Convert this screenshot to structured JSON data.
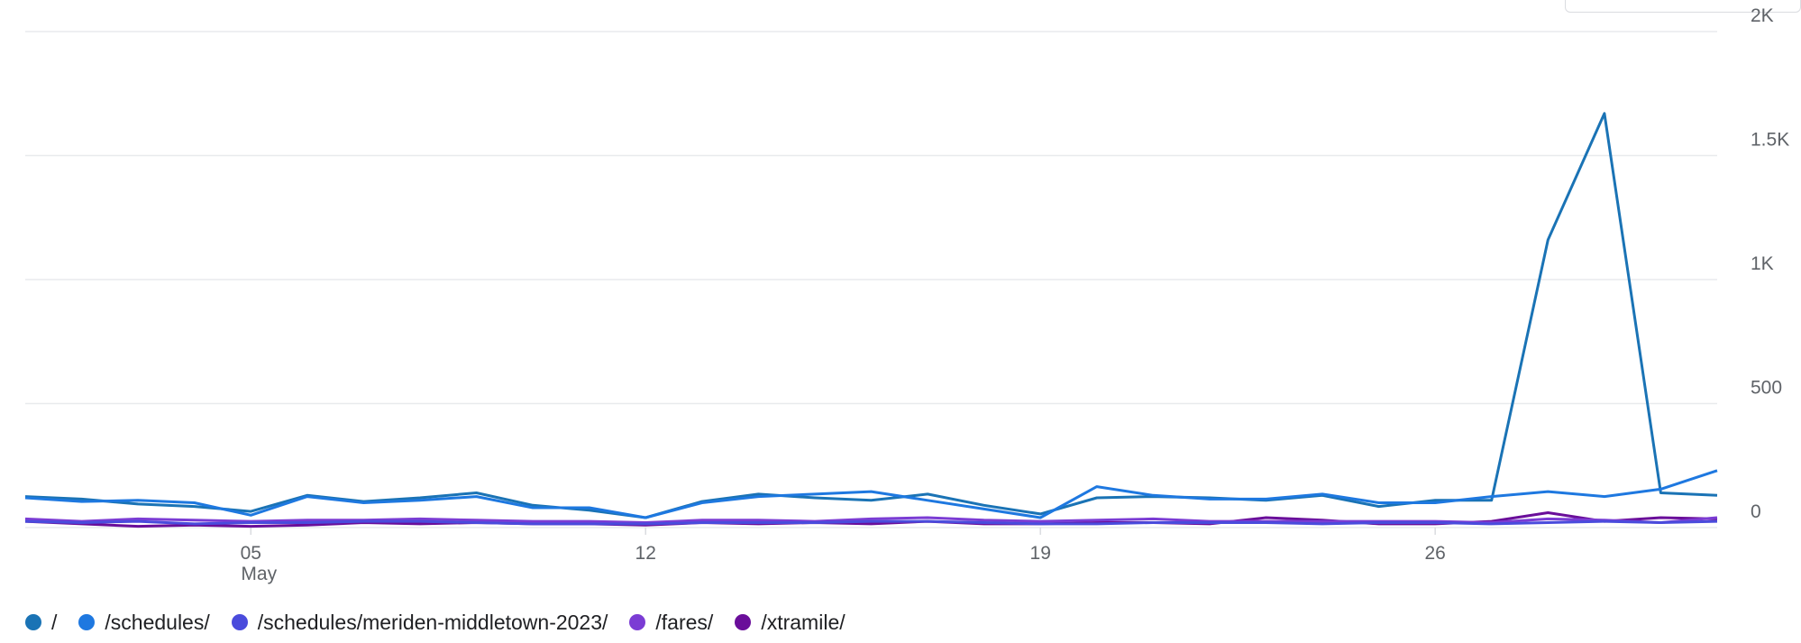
{
  "chart_data": {
    "type": "line",
    "title": "",
    "xlabel": "",
    "ylabel": "",
    "x": [
      "May 1",
      "May 2",
      "May 3",
      "May 4",
      "May 5",
      "May 6",
      "May 7",
      "May 8",
      "May 9",
      "May 10",
      "May 11",
      "May 12",
      "May 13",
      "May 14",
      "May 15",
      "May 16",
      "May 17",
      "May 18",
      "May 19",
      "May 20",
      "May 21",
      "May 22",
      "May 23",
      "May 24",
      "May 25",
      "May 26",
      "May 27",
      "May 28",
      "May 29",
      "May 30",
      "May 31"
    ],
    "x_ticks": [
      {
        "index": 4,
        "label": "05",
        "sublabel": "May"
      },
      {
        "index": 11,
        "label": "12",
        "sublabel": ""
      },
      {
        "index": 18,
        "label": "19",
        "sublabel": ""
      },
      {
        "index": 25,
        "label": "26",
        "sublabel": ""
      }
    ],
    "y_ticks": [
      {
        "value": 0,
        "label": "0"
      },
      {
        "value": 500,
        "label": "500"
      },
      {
        "value": 1000,
        "label": "1K"
      },
      {
        "value": 1500,
        "label": "1.5K"
      },
      {
        "value": 2000,
        "label": "2K"
      }
    ],
    "ylim": [
      0,
      2000
    ],
    "grid": true,
    "y_axis_position": "right",
    "legend_position": "bottom",
    "series": [
      {
        "name": "/",
        "color": "#1a73b5",
        "values": [
          125,
          115,
          95,
          85,
          65,
          130,
          105,
          120,
          140,
          90,
          70,
          40,
          105,
          135,
          120,
          110,
          135,
          90,
          55,
          120,
          125,
          120,
          110,
          130,
          85,
          110,
          110,
          1160,
          1670,
          140,
          130
        ]
      },
      {
        "name": "/schedules/",
        "color": "#1e78e0",
        "values": [
          120,
          105,
          110,
          100,
          50,
          125,
          100,
          110,
          125,
          80,
          80,
          40,
          100,
          125,
          135,
          145,
          110,
          75,
          40,
          165,
          130,
          115,
          115,
          135,
          100,
          100,
          125,
          145,
          125,
          155,
          230
        ]
      },
      {
        "name": "/schedules/meriden-middletown-2023/",
        "color": "#4a4bdc",
        "values": [
          25,
          20,
          25,
          15,
          20,
          20,
          25,
          25,
          20,
          15,
          15,
          15,
          20,
          20,
          20,
          25,
          25,
          20,
          15,
          15,
          20,
          20,
          20,
          15,
          20,
          20,
          15,
          20,
          25,
          20,
          25
        ]
      },
      {
        "name": "/fares/",
        "color": "#7b3cd4",
        "values": [
          35,
          25,
          35,
          30,
          25,
          30,
          30,
          35,
          30,
          25,
          25,
          20,
          30,
          30,
          25,
          35,
          40,
          30,
          25,
          30,
          35,
          25,
          25,
          25,
          25,
          25,
          20,
          35,
          30,
          20,
          40
        ]
      },
      {
        "name": "/xtramile/",
        "color": "#6a0e9a",
        "values": [
          25,
          15,
          5,
          10,
          5,
          10,
          20,
          15,
          20,
          15,
          15,
          10,
          20,
          15,
          20,
          15,
          25,
          15,
          15,
          20,
          20,
          15,
          40,
          30,
          15,
          15,
          25,
          60,
          25,
          40,
          35
        ]
      }
    ]
  }
}
